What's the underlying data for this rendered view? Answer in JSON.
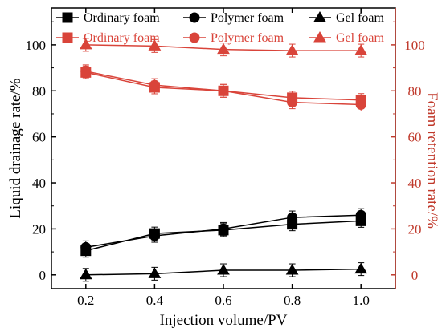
{
  "colors": {
    "left_axis": "#000000",
    "right_axis": "#c0392b",
    "drainage_series": "#000000",
    "retention_series": "#d9443a"
  },
  "chart_data": {
    "type": "line",
    "x": [
      0.2,
      0.4,
      0.6,
      0.8,
      1.0
    ],
    "xlabel": "Injection volume/PV",
    "xlim": [
      0.1,
      1.1
    ],
    "x_ticks": [
      "0.2",
      "0.4",
      "0.6",
      "0.8",
      "1.0"
    ],
    "ylabel_left": "Liquid drainage rate/%",
    "ylim_left": [
      -6,
      116
    ],
    "y_ticks_left": [
      "0",
      "20",
      "40",
      "60",
      "80",
      "100"
    ],
    "ylabel_right": "Foam retention rate/%",
    "ylim_right": [
      -6,
      116
    ],
    "y_ticks_right": [
      "0",
      "20",
      "40",
      "60",
      "80",
      "100"
    ],
    "grid": false,
    "legend_position": "top",
    "series": [
      {
        "name": "Ordinary foam",
        "axis": "left",
        "marker": "square",
        "color": "#000000",
        "values": [
          10.5,
          18,
          19.5,
          22,
          23.5
        ]
      },
      {
        "name": "Polymer foam",
        "axis": "left",
        "marker": "circle",
        "color": "#000000",
        "values": [
          12,
          17,
          20,
          25,
          26
        ]
      },
      {
        "name": "Gel foam",
        "axis": "left",
        "marker": "triangle",
        "color": "#000000",
        "values": [
          0,
          0.5,
          2,
          2,
          2.5
        ]
      },
      {
        "name": "Ordinary foam",
        "axis": "right",
        "marker": "square",
        "color": "#d9443a",
        "values": [
          88,
          81.5,
          80,
          77,
          76
        ]
      },
      {
        "name": "Polymer foam",
        "axis": "right",
        "marker": "circle",
        "color": "#d9443a",
        "values": [
          88.5,
          82.5,
          80,
          75,
          74
        ]
      },
      {
        "name": "Gel foam",
        "axis": "right",
        "marker": "triangle",
        "color": "#d9443a",
        "values": [
          100,
          99.5,
          98,
          97.5,
          97.5
        ]
      }
    ]
  }
}
